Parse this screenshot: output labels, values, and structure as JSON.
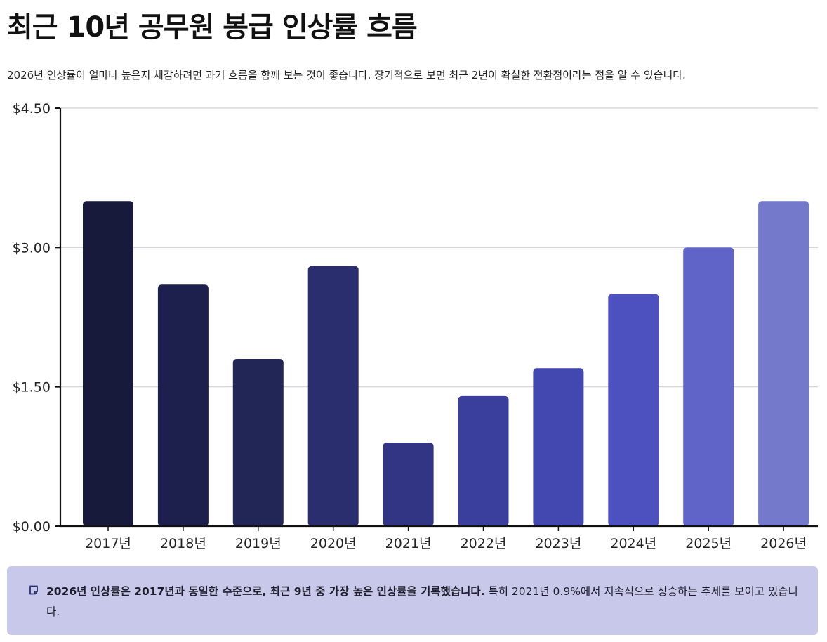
{
  "header": {
    "title": "최근 10년 공무원 봉급 인상률 흐름",
    "subtitle": "2026년 인상률이 얼마나 높은지 체감하려면 과거 흐름을 함께 보는 것이 좋습니다. 장기적으로 보면 최근 2년이 확실한 전환점이라는 점을 알 수 있습니다."
  },
  "chart_data": {
    "type": "bar",
    "categories": [
      "2017년",
      "2018년",
      "2019년",
      "2020년",
      "2021년",
      "2022년",
      "2023년",
      "2024년",
      "2025년",
      "2026년"
    ],
    "values": [
      3.5,
      2.6,
      1.8,
      2.8,
      0.9,
      1.4,
      1.7,
      2.5,
      3.0,
      3.5
    ],
    "colors": [
      "#171a3a",
      "#1d1f4c",
      "#222657",
      "#2b2e6e",
      "#313584",
      "#3a3e9c",
      "#4347b0",
      "#4d51c0",
      "#6064c8",
      "#7479cb"
    ],
    "yticks": [
      "$0.00",
      "$1.50",
      "$3.00",
      "$4.50"
    ],
    "ytick_values": [
      0,
      1.5,
      3.0,
      4.5
    ],
    "ylim": [
      0,
      4.5
    ],
    "grid": true,
    "xlabel": "",
    "ylabel": ""
  },
  "note": {
    "icon": "note-icon",
    "bold_text": "2026년 인상률은 2017년과 동일한 수준으로, 최근 9년 중 가장 높은 인상률을 기록했습니다.",
    "text": " 특히 2021년 0.9%에서 지속적으로 상승하는 추세를 보이고 있습니다."
  }
}
